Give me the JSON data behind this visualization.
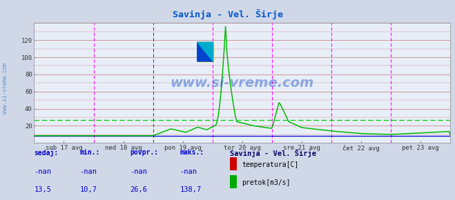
{
  "title": "Savinja - Vel. Širje",
  "title_color": "#0055cc",
  "bg_color": "#d0d8e8",
  "plot_bg_color": "#e8eef8",
  "xlabel_ticks": [
    "sob 17 avg",
    "ned 18 avg",
    "pon 19 avg",
    "tor 20 avg",
    "sre 21 avg",
    "čet 22 avg",
    "pet 23 avg"
  ],
  "ylabel_ticks": [
    "20",
    "40",
    "60",
    "80",
    "100",
    "120"
  ],
  "ylabel_vals": [
    20,
    40,
    60,
    80,
    100,
    120
  ],
  "ymax": 140,
  "ymin": 0,
  "num_points": 336,
  "watermark": "www.si-vreme.com",
  "watermark_color": "#1a55cc",
  "watermark_alpha": 0.45,
  "grid_color_h": "#cc8888",
  "grid_color_v": "#ffaaff",
  "vline_color_main": "#ff00ff",
  "vline_color_black": "#444444",
  "hline_color": "#00cc00",
  "hline_y": 26.6,
  "flow_line_color": "#00bb00",
  "temp_line_color": "#0000cc",
  "temp_baseline": 8.0,
  "legend_title": "Savinja - Vel. Širje",
  "legend_title_color": "#000066",
  "legend_color": "#0000cc",
  "label_sedaj": "sedaj:",
  "label_min": "min.:",
  "label_povpr": "povpr.:",
  "label_maks": "maks.:",
  "val_sedaj_temp": "-nan",
  "val_min_temp": "-nan",
  "val_povpr_temp": "-nan",
  "val_maks_temp": "-nan",
  "val_sedaj_flow": "13,5",
  "val_min_flow": "10,7",
  "val_povpr_flow": "26,6",
  "val_maks_flow": "138,7",
  "temp_rect_color": "#cc0000",
  "flow_rect_color": "#00aa00",
  "label_temperatura": "temperatura[C]",
  "label_pretok": "pretok[m3/s]",
  "sidewater_color": "#4488cc",
  "logo_yellow": "#ffdd00",
  "logo_blue": "#0044cc",
  "logo_cyan": "#00aacc"
}
